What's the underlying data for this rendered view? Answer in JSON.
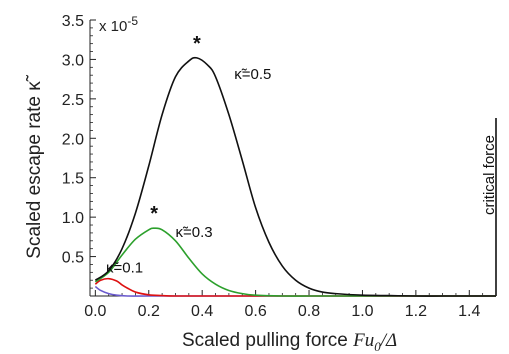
{
  "chart_data": {
    "type": "line",
    "xlabel": "Scaled pulling force ",
    "xlabel_math": "Fu",
    "xlabel_sub": "0",
    "xlabel_tail": "/Δ",
    "ylabel": "Scaled escape rate  κ̃",
    "y_multiplier": "x 10",
    "y_exponent": "-5",
    "xlim": [
      -0.02,
      1.5
    ],
    "ylim": [
      0,
      3.5
    ],
    "x_ticks": [
      0.0,
      0.2,
      0.4,
      0.6,
      0.8,
      1.0,
      1.2,
      1.4
    ],
    "x_tick_labels": [
      "0.0",
      "0.2",
      "0.4",
      "0.6",
      "0.8",
      "1.0",
      "1.2",
      "1.4"
    ],
    "y_ticks": [
      0.5,
      1.0,
      1.5,
      2.0,
      2.5,
      3.0,
      3.5
    ],
    "y_tick_labels": [
      "0.5",
      "1.0",
      "1.5",
      "2.0",
      "2.5",
      "3.0",
      "3.5"
    ],
    "critical_force": {
      "x": 1.5,
      "label": "critical force"
    },
    "series": [
      {
        "name": "κ̃=0.5",
        "color": "#111111",
        "x": [
          0.0,
          0.05,
          0.1,
          0.15,
          0.2,
          0.25,
          0.3,
          0.35,
          0.38,
          0.42,
          0.45,
          0.5,
          0.55,
          0.6,
          0.65,
          0.7,
          0.75,
          0.8,
          0.85,
          0.9,
          1.0,
          1.1,
          1.2,
          1.3,
          1.4,
          1.5
        ],
        "y": [
          0.2,
          0.32,
          0.6,
          1.05,
          1.65,
          2.3,
          2.78,
          2.98,
          3.02,
          2.93,
          2.78,
          2.3,
          1.72,
          1.12,
          0.68,
          0.38,
          0.2,
          0.1,
          0.05,
          0.03,
          0.01,
          0.005,
          0.0,
          0.0,
          0.0,
          0.0
        ]
      },
      {
        "name": "κ̃=0.3",
        "color": "#2ca02c",
        "x": [
          0.0,
          0.05,
          0.1,
          0.15,
          0.2,
          0.22,
          0.25,
          0.3,
          0.35,
          0.4,
          0.45,
          0.5,
          0.55,
          0.6,
          0.7,
          0.8,
          0.9,
          1.0,
          1.2,
          1.4,
          1.5
        ],
        "y": [
          0.18,
          0.3,
          0.52,
          0.72,
          0.84,
          0.86,
          0.84,
          0.7,
          0.48,
          0.28,
          0.15,
          0.07,
          0.03,
          0.01,
          0.0,
          0.0,
          0.0,
          0.0,
          0.0,
          0.0,
          0.0
        ]
      },
      {
        "name": "κ̃=0.1",
        "color": "#dd1111",
        "x": [
          0.0,
          0.02,
          0.05,
          0.08,
          0.1,
          0.12,
          0.15,
          0.2,
          0.25,
          0.3,
          0.4,
          0.6,
          0.8,
          1.0,
          1.5
        ],
        "y": [
          0.15,
          0.2,
          0.22,
          0.19,
          0.14,
          0.1,
          0.05,
          0.015,
          0.005,
          0.0,
          0.0,
          0.0,
          0.0,
          0.0,
          0.0
        ]
      },
      {
        "name": "",
        "color": "#6a5acd",
        "x": [
          0.0,
          0.02,
          0.05,
          0.08,
          0.12,
          0.2,
          0.4,
          0.6,
          1.0,
          1.5
        ],
        "y": [
          0.12,
          0.07,
          0.03,
          0.01,
          0.0,
          0.0,
          0.0,
          0.0,
          0.0,
          0.0
        ]
      }
    ],
    "annotations": [
      {
        "text": "κ̃=0.5",
        "near_series": 0
      },
      {
        "text": "κ̃=0.3",
        "near_series": 1
      },
      {
        "text": "κ̃=0.1",
        "near_series": 2
      }
    ],
    "peak_markers": [
      {
        "symbol": "*",
        "x": 0.38,
        "y": 3.02
      },
      {
        "symbol": "*",
        "x": 0.22,
        "y": 0.86
      }
    ]
  }
}
